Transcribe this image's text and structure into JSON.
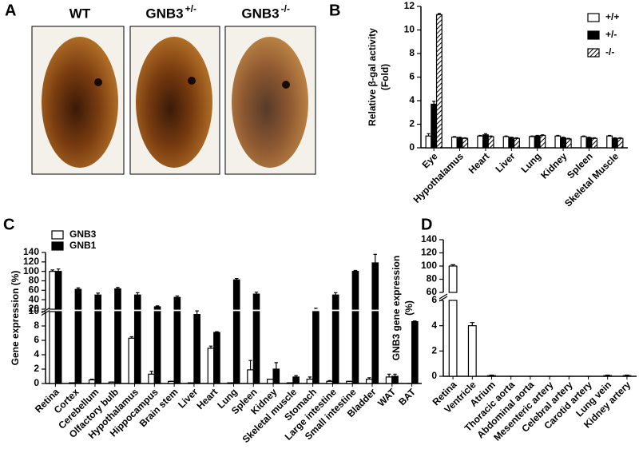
{
  "panel_a": {
    "label": "A",
    "images": [
      {
        "text": "WT",
        "sup": null
      },
      {
        "text": "GNB3",
        "sup": "+/-"
      },
      {
        "text": "GNB3",
        "sup": "-/-"
      }
    ]
  },
  "chart_data": [
    {
      "type": "bar",
      "panel": "B",
      "ylabel": [
        "Relative β-gal activity",
        "(Fold)"
      ],
      "categories": [
        "Eye",
        "Hypothalamus",
        "Heart",
        "Liver",
        "Lung",
        "Kidney",
        "Spleen",
        "Skeletal Muscle"
      ],
      "series": [
        {
          "name": "+/+",
          "color": "#ffffff",
          "hatch": false,
          "values": [
            1.0,
            0.9,
            1.0,
            0.95,
            0.95,
            1.0,
            0.95,
            1.0
          ],
          "errors": [
            0.2,
            0.05,
            0.05,
            0.05,
            0.05,
            0.05,
            0.05,
            0.05
          ]
        },
        {
          "name": "+/-",
          "color": "#000000",
          "hatch": false,
          "values": [
            3.7,
            0.85,
            1.1,
            0.85,
            1.0,
            0.85,
            0.85,
            0.8
          ],
          "errors": [
            0.25,
            0.05,
            0.1,
            0.05,
            0.05,
            0.05,
            0.05,
            0.05
          ]
        },
        {
          "name": "-/-",
          "color": "#ffffff",
          "hatch": true,
          "values": [
            11.3,
            0.8,
            0.95,
            0.8,
            1.05,
            0.75,
            0.8,
            0.8
          ],
          "errors": [
            0.1,
            0.05,
            0.05,
            0.05,
            0.05,
            0.05,
            0.05,
            0.05
          ]
        }
      ],
      "ylim": [
        0,
        12
      ],
      "yticks": [
        0,
        2,
        4,
        6,
        8,
        10,
        12
      ],
      "legend": "upper right"
    },
    {
      "type": "bar",
      "panel": "C",
      "ylabel": [
        "Gene expression (%)"
      ],
      "categories": [
        "Retina",
        "Cortex",
        "Cerebellum",
        "Olfactory bulb",
        "Hypothalamus",
        "Hippocampus",
        "Brain stem",
        "Liver",
        "Heart",
        "Lung",
        "Spleen",
        "Kidney",
        "Skeletal muscle",
        "Stomach",
        "Large intestine",
        "Small intestine",
        "Bladder",
        "WAT",
        "BAT"
      ],
      "series": [
        {
          "name": "GNB3",
          "color": "#ffffff",
          "hatch": false,
          "values": [
            100,
            0.1,
            0.5,
            0.2,
            6.3,
            1.3,
            0.3,
            0.1,
            4.9,
            0.1,
            1.9,
            0.6,
            0.1,
            0.6,
            0.3,
            0.3,
            0.6,
            0.9,
            0
          ],
          "errors": [
            3,
            0,
            0.1,
            0,
            0.2,
            0.4,
            0,
            0,
            0.3,
            0,
            1.3,
            0,
            0,
            0.3,
            0.1,
            0,
            0.2,
            0.4,
            0
          ]
        },
        {
          "name": "GNB1",
          "color": "#000000",
          "hatch": false,
          "values": [
            100,
            62,
            50,
            63,
            50,
            25,
            45,
            9.6,
            7.1,
            82,
            52,
            2.0,
            0.9,
            20,
            50,
            100,
            118,
            1.0,
            8.6
          ],
          "errors": [
            5,
            3,
            4,
            3,
            5,
            2,
            3,
            0.5,
            0.1,
            3,
            4,
            0.9,
            0.2,
            2,
            5,
            2,
            18,
            0.3,
            0.1
          ]
        }
      ],
      "segments": [
        {
          "ylim": [
            0,
            10
          ],
          "yticks": [
            0,
            2,
            4,
            6,
            8,
            10
          ]
        },
        {
          "ylim": [
            20,
            140
          ],
          "yticks": [
            20,
            40,
            60,
            80,
            100,
            120,
            140
          ]
        }
      ],
      "legend": "upper left"
    },
    {
      "type": "bar",
      "panel": "D",
      "ylabel": [
        "GNB3 gene expression",
        "(%)"
      ],
      "categories": [
        "Retina",
        "Ventricle",
        "Atrium",
        "Thoracic aorta",
        "Abdominal aorta",
        "Mesenteric artery",
        "Celebral artery",
        "Carotid artery",
        "Lung vein",
        "Kidney artery"
      ],
      "series": [
        {
          "name": "GNB3",
          "color": "#ffffff",
          "hatch": false,
          "values": [
            100,
            4.0,
            0.05,
            0,
            0,
            0,
            0,
            0,
            0.05,
            0.05
          ],
          "errors": [
            2,
            0.25,
            0.05,
            0,
            0,
            0,
            0,
            0,
            0.05,
            0.05
          ]
        }
      ],
      "segments": [
        {
          "ylim": [
            0,
            6
          ],
          "yticks": [
            0,
            2,
            4,
            6
          ]
        },
        {
          "ylim": [
            60,
            140
          ],
          "yticks": [
            60,
            80,
            100,
            120,
            140
          ]
        }
      ],
      "legend": "none"
    }
  ]
}
